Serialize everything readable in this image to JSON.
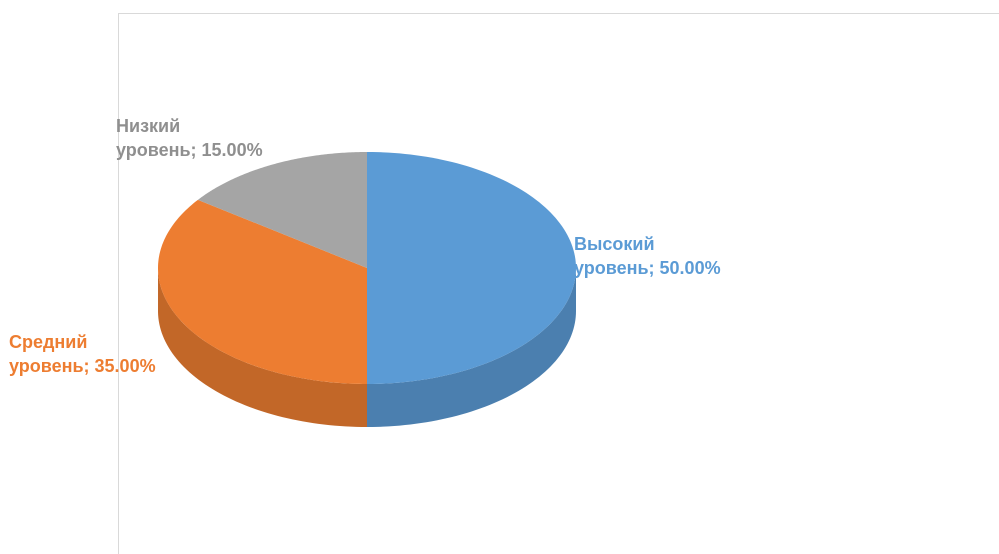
{
  "chart_data": {
    "type": "pie",
    "style": "3d",
    "categories": [
      "Высокий уровень",
      "Средний уровень",
      "Низкий уровень"
    ],
    "values": [
      50.0,
      35.0,
      15.0
    ],
    "colors": [
      "#5B9BD5",
      "#ED7D31",
      "#A5A5A5"
    ],
    "labels": [
      {
        "line1": "Высокий",
        "line2": "уровень; 50.00%"
      },
      {
        "line1": "Средний",
        "line2": "уровень; 35.00%"
      },
      {
        "line1": "Низкий",
        "line2": "уровень; 15.00%"
      }
    ]
  }
}
